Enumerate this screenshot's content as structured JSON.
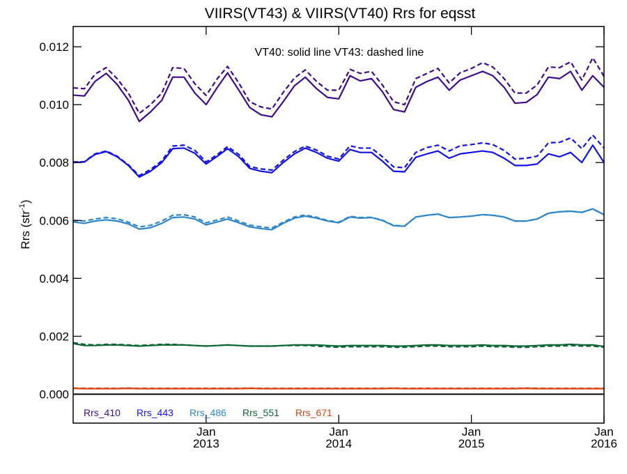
{
  "chart_data": {
    "type": "line",
    "title": "VIIRS(VT43) & VIIRS(VT40)  Rrs for eqsst",
    "ylabel_main": "Rrs (str",
    "ylabel_sup": "-1",
    "ylabel_close": ")",
    "annotation": "VT40: solid line   VT43: dashed line",
    "xlim": [
      "2012-01-01",
      "2016-01-01"
    ],
    "ylim": [
      -0.001,
      0.0127
    ],
    "y_ticks": [
      0.0,
      0.002,
      0.004,
      0.006,
      0.008,
      0.01,
      0.012
    ],
    "y_tick_labels": [
      "0.000",
      "0.002",
      "0.004",
      "0.006",
      "0.008",
      "0.010",
      "0.012"
    ],
    "x_ticks": [
      {
        "date": "2013-01-01",
        "month": "Jan",
        "year": "2013"
      },
      {
        "date": "2014-01-01",
        "month": "Jan",
        "year": "2014"
      },
      {
        "date": "2015-01-01",
        "month": "Jan",
        "year": "2015"
      },
      {
        "date": "2016-01-01",
        "month": "Jan",
        "year": "2016"
      }
    ],
    "zero_line": 0.0,
    "dates": [
      "2012-01-01",
      "2012-02-01",
      "2012-03-01",
      "2012-04-01",
      "2012-05-01",
      "2012-06-01",
      "2012-07-01",
      "2012-08-01",
      "2012-09-01",
      "2012-10-01",
      "2012-11-01",
      "2012-12-01",
      "2013-01-01",
      "2013-02-01",
      "2013-03-01",
      "2013-04-01",
      "2013-05-01",
      "2013-06-01",
      "2013-07-01",
      "2013-08-01",
      "2013-09-01",
      "2013-10-01",
      "2013-11-01",
      "2013-12-01",
      "2014-01-01",
      "2014-02-01",
      "2014-03-01",
      "2014-04-01",
      "2014-05-01",
      "2014-06-01",
      "2014-07-01",
      "2014-08-01",
      "2014-09-01",
      "2014-10-01",
      "2014-11-01",
      "2014-12-01",
      "2015-01-01",
      "2015-02-01",
      "2015-03-01",
      "2015-04-01",
      "2015-05-01",
      "2015-06-01",
      "2015-07-01",
      "2015-08-01",
      "2015-09-01",
      "2015-10-01",
      "2015-11-01",
      "2015-12-01",
      "2016-01-01"
    ],
    "series": [
      {
        "name": "Rrs_410",
        "color": "#3e0a8e",
        "vt40": [
          0.01033,
          0.0103,
          0.0108,
          0.01108,
          0.0107,
          0.01015,
          0.00942,
          0.00975,
          0.01015,
          0.01095,
          0.01095,
          0.0104,
          0.01,
          0.0106,
          0.0111,
          0.0105,
          0.0099,
          0.00965,
          0.00958,
          0.0101,
          0.01065,
          0.01095,
          0.01055,
          0.01025,
          0.0102,
          0.011,
          0.01082,
          0.0109,
          0.01045,
          0.00983,
          0.00975,
          0.0106,
          0.0108,
          0.01095,
          0.0105,
          0.01085,
          0.011,
          0.01115,
          0.011,
          0.0106,
          0.01005,
          0.01008,
          0.01035,
          0.01095,
          0.0109,
          0.01115,
          0.0105,
          0.011,
          0.0106
        ],
        "vt43": [
          0.01058,
          0.01055,
          0.01105,
          0.01128,
          0.0109,
          0.0104,
          0.0097,
          0.01,
          0.0104,
          0.01128,
          0.01125,
          0.01072,
          0.01032,
          0.0109,
          0.01132,
          0.01075,
          0.0101,
          0.00992,
          0.00985,
          0.01042,
          0.01092,
          0.0112,
          0.0108,
          0.0105,
          0.0105,
          0.01122,
          0.01108,
          0.01115,
          0.01068,
          0.0101,
          0.01,
          0.0109,
          0.01108,
          0.01125,
          0.01075,
          0.0111,
          0.01125,
          0.01145,
          0.0113,
          0.0109,
          0.0104,
          0.0104,
          0.01068,
          0.0113,
          0.01128,
          0.01148,
          0.01085,
          0.01162,
          0.01098
        ]
      },
      {
        "name": "Rrs_443",
        "color": "#1111e6",
        "vt40": [
          0.008,
          0.00802,
          0.00828,
          0.00838,
          0.0082,
          0.0079,
          0.0075,
          0.0077,
          0.008,
          0.00848,
          0.0085,
          0.00832,
          0.00795,
          0.00822,
          0.00848,
          0.0082,
          0.0078,
          0.0077,
          0.00765,
          0.008,
          0.0083,
          0.0085,
          0.00835,
          0.00815,
          0.00805,
          0.00845,
          0.00835,
          0.00835,
          0.00805,
          0.0077,
          0.00768,
          0.00818,
          0.0083,
          0.0084,
          0.00815,
          0.0083,
          0.00835,
          0.0084,
          0.00835,
          0.00815,
          0.0079,
          0.0079,
          0.00795,
          0.0083,
          0.0082,
          0.00835,
          0.008,
          0.0086,
          0.008
        ],
        "vt43": [
          0.00802,
          0.00803,
          0.0083,
          0.0084,
          0.00822,
          0.00792,
          0.00755,
          0.00776,
          0.00806,
          0.00857,
          0.0086,
          0.00842,
          0.00802,
          0.00828,
          0.00855,
          0.00828,
          0.00786,
          0.00778,
          0.00774,
          0.00808,
          0.00838,
          0.00857,
          0.00843,
          0.00822,
          0.00812,
          0.00858,
          0.0085,
          0.0085,
          0.0082,
          0.00785,
          0.00782,
          0.00835,
          0.00852,
          0.0086,
          0.0084,
          0.00858,
          0.00862,
          0.00868,
          0.00862,
          0.00842,
          0.00812,
          0.00815,
          0.00822,
          0.00868,
          0.0087,
          0.00885,
          0.00848,
          0.00895,
          0.0085
        ]
      },
      {
        "name": "Rrs_486",
        "color": "#2e86c8",
        "vt40": [
          0.00595,
          0.0059,
          0.00598,
          0.00602,
          0.00598,
          0.00588,
          0.0057,
          0.00575,
          0.0059,
          0.0061,
          0.00612,
          0.00605,
          0.00585,
          0.00595,
          0.00605,
          0.00592,
          0.00578,
          0.00572,
          0.00568,
          0.0059,
          0.00608,
          0.00615,
          0.00608,
          0.00598,
          0.00592,
          0.00612,
          0.00608,
          0.0061,
          0.006,
          0.00582,
          0.0058,
          0.00612,
          0.00618,
          0.00622,
          0.0061,
          0.00612,
          0.00615,
          0.0062,
          0.00618,
          0.00612,
          0.00598,
          0.00598,
          0.00605,
          0.00625,
          0.0063,
          0.00632,
          0.00628,
          0.0064,
          0.0062
        ],
        "vt43": [
          0.006,
          0.00598,
          0.00605,
          0.0061,
          0.00606,
          0.00594,
          0.00578,
          0.00583,
          0.00598,
          0.00618,
          0.0062,
          0.00612,
          0.00592,
          0.00602,
          0.00612,
          0.00598,
          0.00584,
          0.00578,
          0.00574,
          0.00594,
          0.00612,
          0.00619,
          0.00611,
          0.006,
          0.00594,
          0.00614,
          0.0061,
          0.00611,
          0.00601,
          0.00583,
          0.00581,
          0.00612,
          0.00618,
          0.00622,
          0.0061,
          0.00612,
          0.00615,
          0.0062,
          0.00618,
          0.00612,
          0.00598,
          0.00598,
          0.00605,
          0.00625,
          0.0063,
          0.00632,
          0.00628,
          0.0064,
          0.0062
        ]
      },
      {
        "name": "Rrs_551",
        "color": "#0e6634",
        "vt40": [
          0.00175,
          0.00168,
          0.00168,
          0.0017,
          0.0017,
          0.00168,
          0.00166,
          0.00168,
          0.0017,
          0.0017,
          0.0017,
          0.00168,
          0.00166,
          0.00168,
          0.0017,
          0.00168,
          0.00166,
          0.00166,
          0.00166,
          0.00168,
          0.0017,
          0.0017,
          0.0017,
          0.00168,
          0.00166,
          0.00168,
          0.00168,
          0.00168,
          0.00168,
          0.00166,
          0.00166,
          0.00168,
          0.0017,
          0.0017,
          0.00168,
          0.00168,
          0.00168,
          0.0017,
          0.00168,
          0.00168,
          0.00166,
          0.00166,
          0.00168,
          0.0017,
          0.0017,
          0.00172,
          0.0017,
          0.0017,
          0.00165
        ],
        "vt43": [
          0.00178,
          0.00172,
          0.0017,
          0.00172,
          0.00172,
          0.0017,
          0.00168,
          0.0017,
          0.00172,
          0.00172,
          0.0017,
          0.00168,
          0.00166,
          0.00168,
          0.0017,
          0.00168,
          0.00166,
          0.00166,
          0.00166,
          0.00168,
          0.00168,
          0.00168,
          0.00166,
          0.00164,
          0.00162,
          0.00164,
          0.00164,
          0.00164,
          0.00164,
          0.00162,
          0.00162,
          0.00164,
          0.00166,
          0.00166,
          0.00164,
          0.00164,
          0.00164,
          0.00166,
          0.00164,
          0.00164,
          0.00162,
          0.00162,
          0.00164,
          0.00166,
          0.00166,
          0.00168,
          0.00166,
          0.00166,
          0.00162
        ]
      },
      {
        "name": "Rrs_671",
        "color": "#d9420f",
        "vt40": [
          0.0002,
          0.00019,
          0.00019,
          0.00019,
          0.00019,
          0.0002,
          0.00019,
          0.00019,
          0.00019,
          0.00019,
          0.00019,
          0.00019,
          0.00019,
          0.00019,
          0.00019,
          0.00019,
          0.0002,
          0.00019,
          0.00019,
          0.00019,
          0.00019,
          0.00019,
          0.00019,
          0.00019,
          0.00019,
          0.00019,
          0.00019,
          0.00019,
          0.00019,
          0.0002,
          0.00019,
          0.00019,
          0.00019,
          0.00019,
          0.00019,
          0.00019,
          0.00019,
          0.00019,
          0.00019,
          0.00019,
          0.00019,
          0.0002,
          0.00019,
          0.00019,
          0.00019,
          0.00019,
          0.00019,
          0.00019,
          0.00019
        ],
        "vt43": [
          0.00021,
          0.0002,
          0.0002,
          0.0002,
          0.0002,
          0.00021,
          0.0002,
          0.0002,
          0.0002,
          0.0002,
          0.0002,
          0.0002,
          0.0002,
          0.0002,
          0.0002,
          0.0002,
          0.00021,
          0.0002,
          0.0002,
          0.0002,
          0.0002,
          0.0002,
          0.0002,
          0.0002,
          0.0002,
          0.0002,
          0.0002,
          0.0002,
          0.0002,
          0.00021,
          0.0002,
          0.0002,
          0.0002,
          0.0002,
          0.0002,
          0.0002,
          0.0002,
          0.0002,
          0.0002,
          0.0002,
          0.0002,
          0.00021,
          0.0002,
          0.0002,
          0.0002,
          0.0002,
          0.0002,
          0.0002,
          0.0002
        ]
      }
    ]
  }
}
